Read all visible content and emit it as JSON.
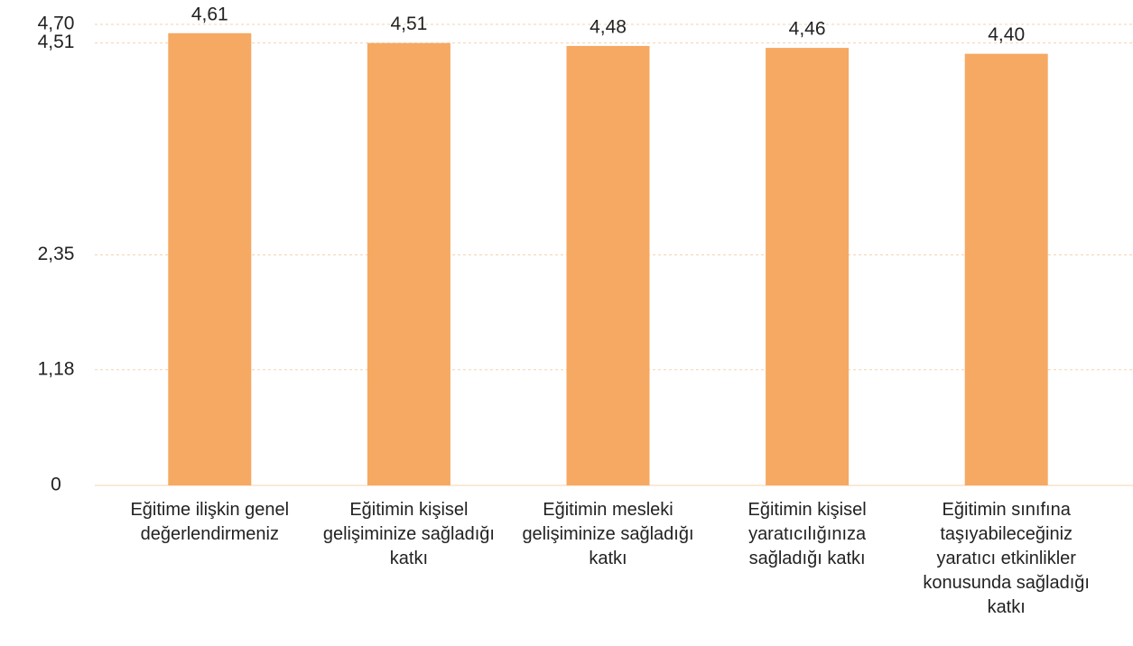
{
  "chart_data": {
    "type": "bar",
    "categories": [
      "Eğitime ilişkin genel değerlendirmeniz",
      "Eğitimin kişisel gelişiminize sağladığı katkı",
      "Eğitimin mesleki gelişiminize sağladığı katkı",
      "Eğitimin kişisel yaratıcılığınıza sağladığı katkı",
      "Eğitimin sınıfına taşıyabileceğiniz yaratıcı etkinlikler konusunda sağladığı katkı"
    ],
    "values": [
      4.61,
      4.51,
      4.48,
      4.46,
      4.4
    ],
    "value_labels": [
      "4,61",
      "4,51",
      "4,48",
      "4,46",
      "4,40"
    ],
    "color": "#f5a962",
    "ylim": [
      0,
      4.7
    ],
    "yticks": [
      0,
      {
        "value": 1.18,
        "label": "1,18"
      },
      {
        "value": 2.35,
        "label": "2,35"
      },
      {
        "value": 4.51,
        "label": "4,51"
      },
      {
        "value": 4.7,
        "label": "4,70"
      }
    ],
    "grid": true
  }
}
